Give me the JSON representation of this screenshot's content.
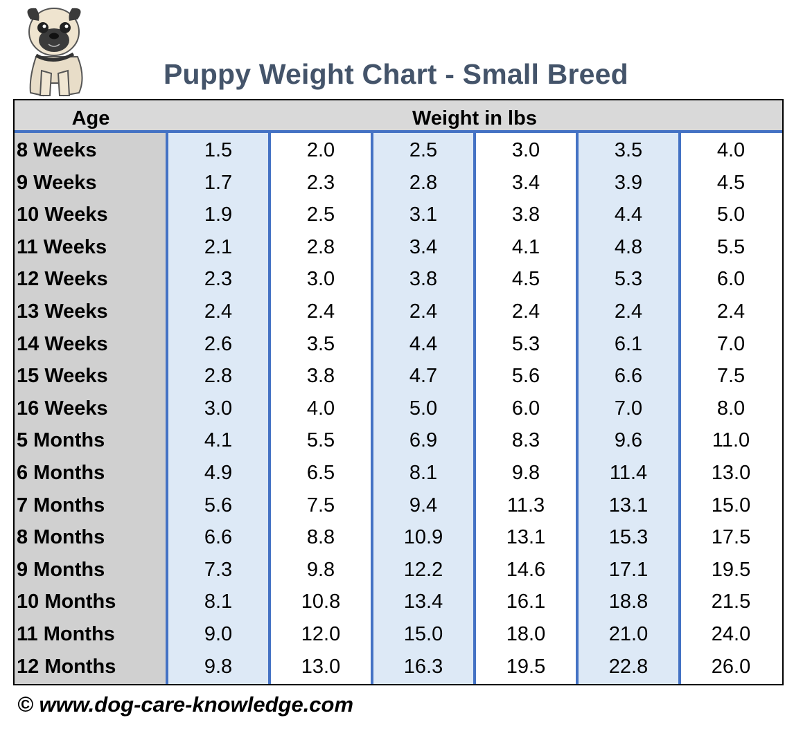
{
  "title": "Puppy Weight Chart - Small Breed",
  "copyright": "© www.dog-care-knowledge.com",
  "colors": {
    "title": "#44546a",
    "header_bg": "#d9d9d9",
    "age_bg": "#d0d0d0",
    "shaded_col": "#dde9f6",
    "rule": "#4472c4"
  },
  "chart_data": {
    "type": "table",
    "title": "Puppy Weight Chart - Small Breed",
    "columns": [
      "Age",
      "Weight in lbs"
    ],
    "rows": [
      {
        "age": "8 Weeks",
        "values": [
          "1.5",
          "2.0",
          "2.5",
          "3.0",
          "3.5",
          "4.0"
        ]
      },
      {
        "age": "9 Weeks",
        "values": [
          "1.7",
          "2.3",
          "2.8",
          "3.4",
          "3.9",
          "4.5"
        ]
      },
      {
        "age": "10 Weeks",
        "values": [
          "1.9",
          "2.5",
          "3.1",
          "3.8",
          "4.4",
          "5.0"
        ]
      },
      {
        "age": "11 Weeks",
        "values": [
          "2.1",
          "2.8",
          "3.4",
          "4.1",
          "4.8",
          "5.5"
        ]
      },
      {
        "age": "12 Weeks",
        "values": [
          "2.3",
          "3.0",
          "3.8",
          "4.5",
          "5.3",
          "6.0"
        ]
      },
      {
        "age": "13 Weeks",
        "values": [
          "2.4",
          "2.4",
          "2.4",
          "2.4",
          "2.4",
          "2.4"
        ]
      },
      {
        "age": "14 Weeks",
        "values": [
          "2.6",
          "3.5",
          "4.4",
          "5.3",
          "6.1",
          "7.0"
        ]
      },
      {
        "age": "15 Weeks",
        "values": [
          "2.8",
          "3.8",
          "4.7",
          "5.6",
          "6.6",
          "7.5"
        ]
      },
      {
        "age": "16 Weeks",
        "values": [
          "3.0",
          "4.0",
          "5.0",
          "6.0",
          "7.0",
          "8.0"
        ]
      },
      {
        "age": "5 Months",
        "values": [
          "4.1",
          "5.5",
          "6.9",
          "8.3",
          "9.6",
          "11.0"
        ]
      },
      {
        "age": "6 Months",
        "values": [
          "4.9",
          "6.5",
          "8.1",
          "9.8",
          "11.4",
          "13.0"
        ]
      },
      {
        "age": "7 Months",
        "values": [
          "5.6",
          "7.5",
          "9.4",
          "11.3",
          "13.1",
          "15.0"
        ]
      },
      {
        "age": "8 Months",
        "values": [
          "6.6",
          "8.8",
          "10.9",
          "13.1",
          "15.3",
          "17.5"
        ]
      },
      {
        "age": "9 Months",
        "values": [
          "7.3",
          "9.8",
          "12.2",
          "14.6",
          "17.1",
          "19.5"
        ]
      },
      {
        "age": "10 Months",
        "values": [
          "8.1",
          "10.8",
          "13.4",
          "16.1",
          "18.8",
          "21.5"
        ]
      },
      {
        "age": "11 Months",
        "values": [
          "9.0",
          "12.0",
          "15.0",
          "18.0",
          "21.0",
          "24.0"
        ]
      },
      {
        "age": "12 Months",
        "values": [
          "9.8",
          "13.0",
          "16.3",
          "19.5",
          "22.8",
          "26.0"
        ]
      }
    ]
  }
}
